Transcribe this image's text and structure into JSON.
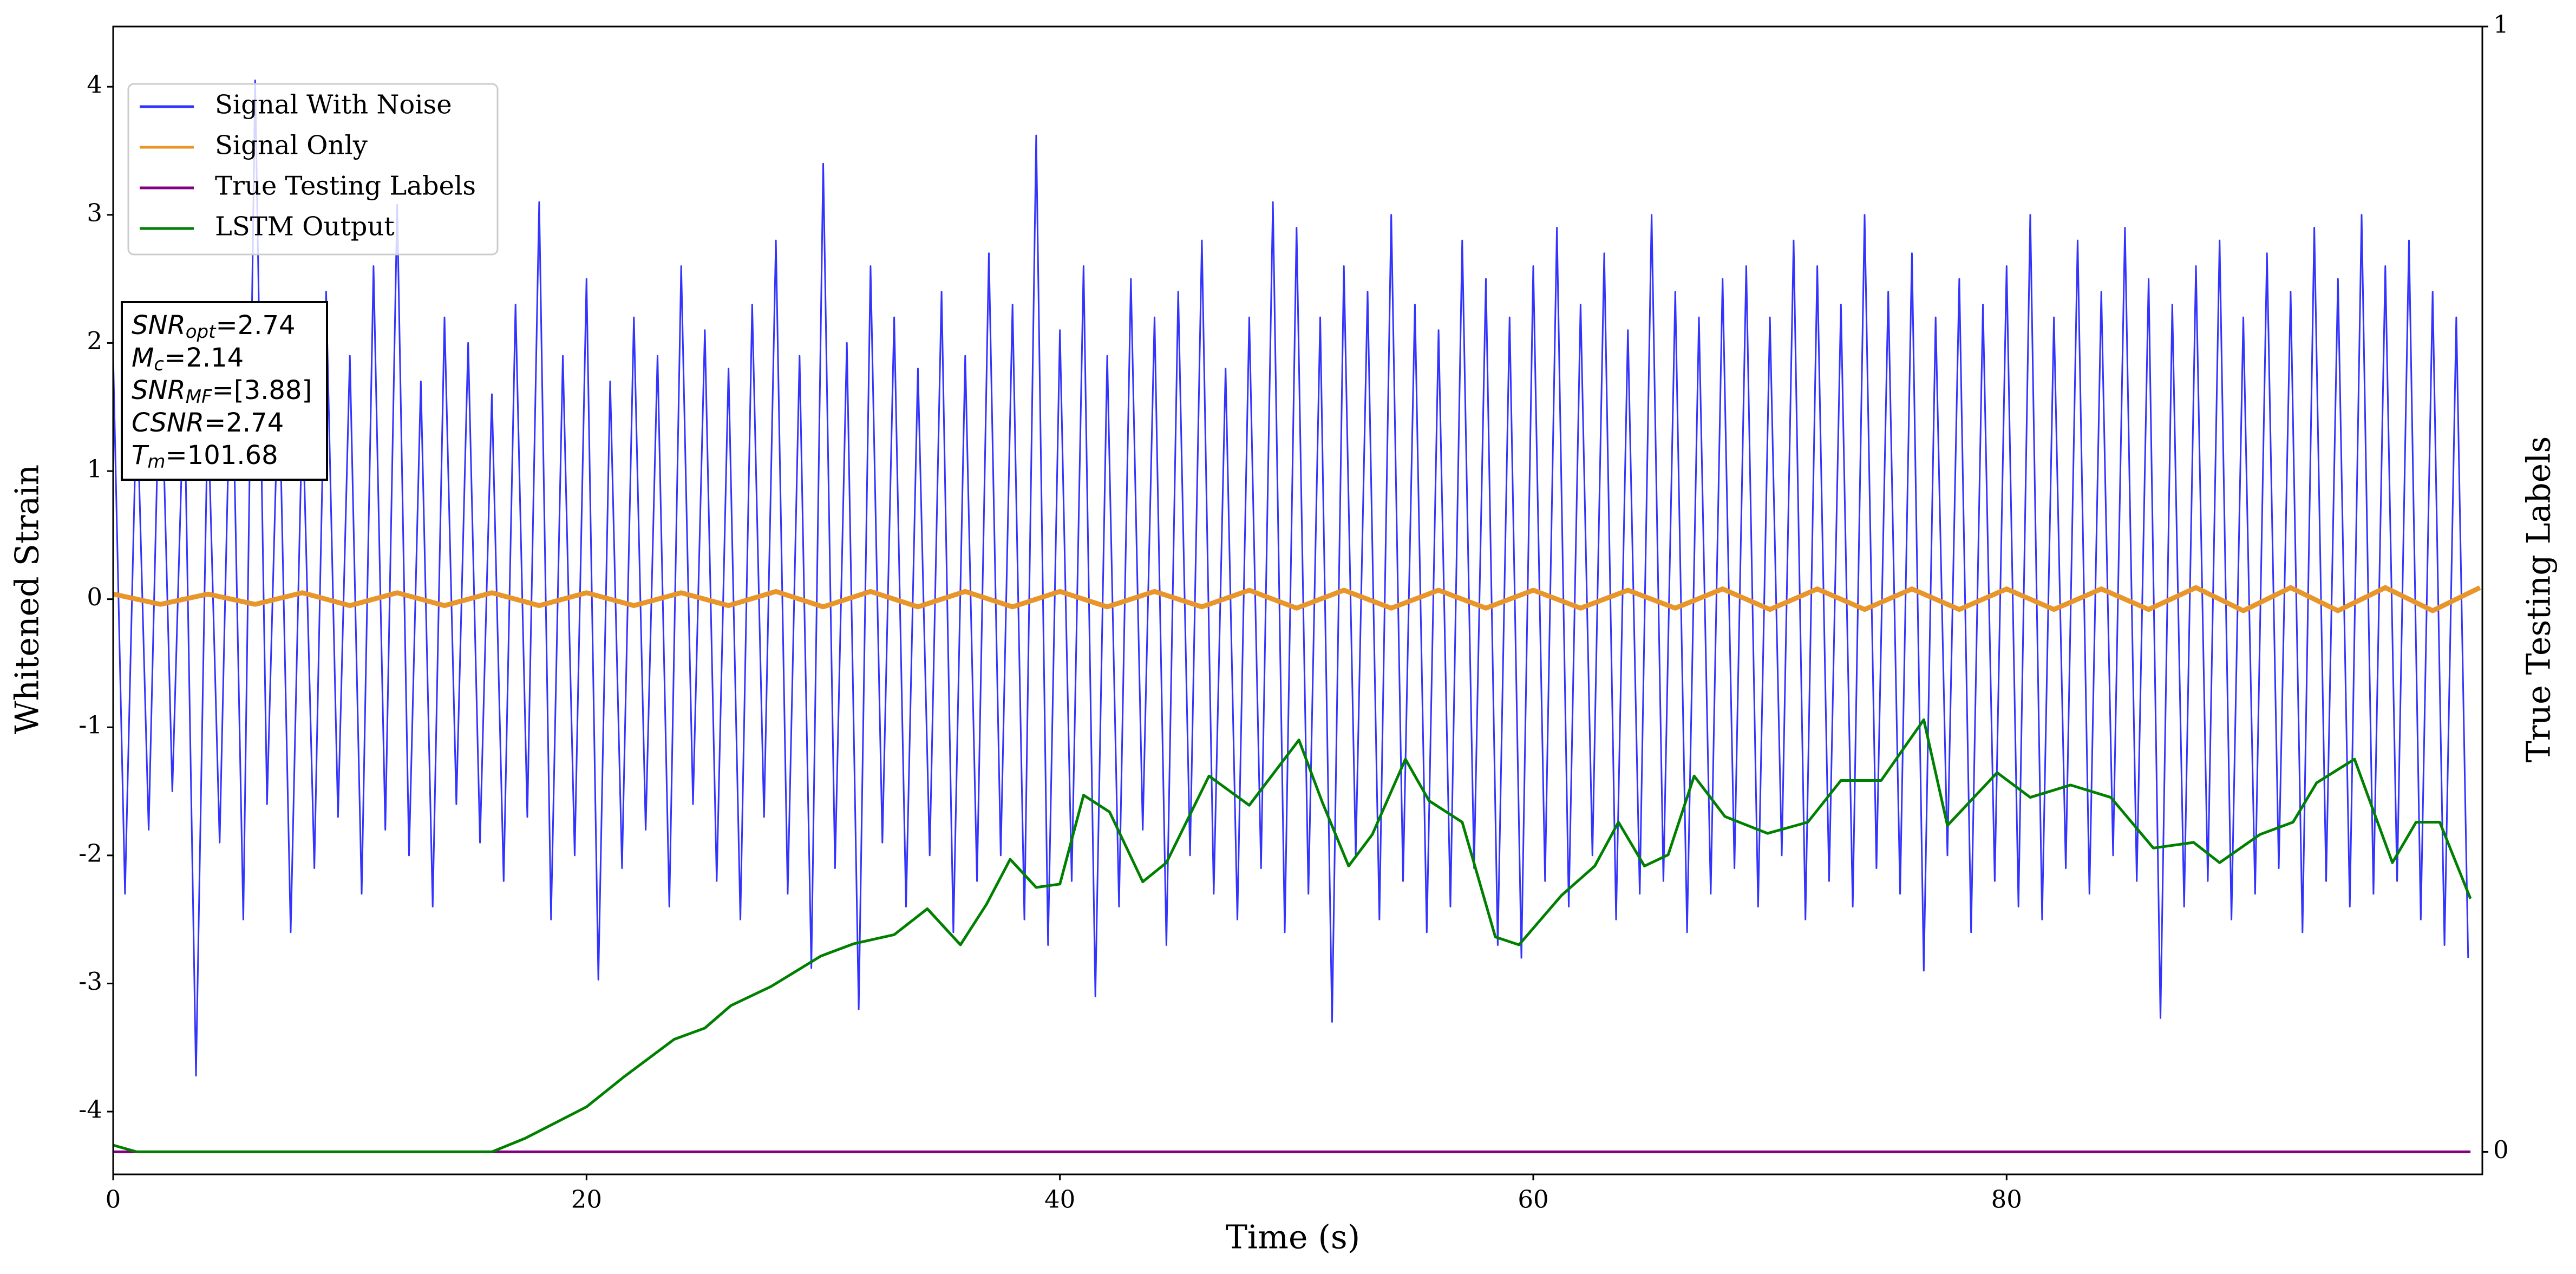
{
  "chart_data": {
    "type": "line",
    "xlabel": "Time (s)",
    "ylabel": "Whitened Strain",
    "y2label": "True Testing Labels",
    "xlim": [
      0,
      100.1
    ],
    "ylim": [
      -4.49,
      4.47
    ],
    "y2lim": [
      -0.02,
      1
    ],
    "xticks": [
      0,
      20,
      40,
      60,
      80
    ],
    "yticks": [
      -4,
      -3,
      -2,
      -1,
      0,
      1,
      2,
      3,
      4
    ],
    "y2ticks": [
      0,
      1
    ],
    "legend": "upper left",
    "annotation": [
      {
        "text": "SNR",
        "sub": "opt",
        "rest": "=2.74"
      },
      {
        "text": "M",
        "sub": "c",
        "rest": "=2.14"
      },
      {
        "text": "SNR",
        "sub": "MF",
        "rest": "=[3.88]"
      },
      {
        "text": "CSNR",
        "rest": "=2.74"
      },
      {
        "text": "T",
        "sub": "m",
        "rest": "=101.68"
      }
    ],
    "series": [
      {
        "name": "Signal With Noise",
        "color": "#3333ff",
        "x": [
          0,
          0.5,
          1,
          1.5,
          2,
          2.5,
          3,
          3.5,
          4,
          4.5,
          5,
          5.5,
          6,
          6.5,
          7,
          7.5,
          8,
          8.5,
          9,
          9.5,
          10,
          10.5,
          11,
          11.5,
          12,
          12.5,
          13,
          13.5,
          14,
          14.5,
          15,
          15.5,
          16,
          16.5,
          17,
          17.5,
          18,
          18.5,
          19,
          19.5,
          20,
          20.5,
          21,
          21.5,
          22,
          22.5,
          23,
          23.5,
          24,
          24.5,
          25,
          25.5,
          26,
          26.5,
          27,
          27.5,
          28,
          28.5,
          29,
          29.5,
          30,
          30.5,
          31,
          31.5,
          32,
          32.5,
          33,
          33.5,
          34,
          34.5,
          35,
          35.5,
          36,
          36.5,
          37,
          37.5,
          38,
          38.5,
          39,
          39.5,
          40,
          40.5,
          41,
          41.5,
          42,
          42.5,
          43,
          43.5,
          44,
          44.5,
          45,
          45.5,
          46,
          46.5,
          47,
          47.5,
          48,
          48.5,
          49,
          49.5,
          50,
          50.5,
          51,
          51.5,
          52,
          52.5,
          53,
          53.5,
          54,
          54.5,
          55,
          55.5,
          56,
          56.5,
          57,
          57.5,
          58,
          58.5,
          59,
          59.5,
          60,
          60.5,
          61,
          61.5,
          62,
          62.5,
          63,
          63.5,
          64,
          64.5,
          65,
          65.5,
          66,
          66.5,
          67,
          67.5,
          68,
          68.5,
          69,
          69.5,
          70,
          70.5,
          71,
          71.5,
          72,
          72.5,
          73,
          73.5,
          74,
          74.5,
          75,
          75.5,
          76,
          76.5,
          77,
          77.5,
          78,
          78.5,
          79,
          79.5,
          80,
          80.5,
          81,
          81.5,
          82,
          82.5,
          83,
          83.5,
          84,
          84.5,
          85,
          85.5,
          86,
          86.5,
          87,
          87.5,
          88,
          88.5,
          89,
          89.5,
          90,
          90.5,
          91,
          91.5,
          92,
          92.5,
          93,
          93.5,
          94,
          94.5,
          95,
          95.5,
          96,
          96.5,
          97,
          97.5,
          98,
          98.5,
          99,
          99.5
        ],
        "values": [
          1.9,
          -2.3,
          1.6,
          -1.8,
          2.1,
          -1.5,
          1.7,
          -3.72,
          1.5,
          -1.9,
          2.2,
          -2.5,
          4.05,
          -1.6,
          1.8,
          -2.6,
          1.5,
          -2.1,
          2.4,
          -1.7,
          1.9,
          -2.3,
          2.6,
          -1.8,
          3.08,
          -2.0,
          1.7,
          -2.4,
          2.2,
          -1.6,
          2.0,
          -1.9,
          1.6,
          -2.2,
          2.3,
          -1.7,
          3.1,
          -2.5,
          1.9,
          -2.0,
          2.5,
          -2.97,
          1.7,
          -2.1,
          2.2,
          -1.8,
          1.9,
          -2.4,
          2.6,
          -1.6,
          2.1,
          -2.2,
          1.8,
          -2.5,
          2.3,
          -1.7,
          2.8,
          -2.3,
          1.9,
          -2.88,
          3.4,
          -2.1,
          2.0,
          -3.2,
          2.6,
          -1.9,
          2.2,
          -2.4,
          1.8,
          -2.0,
          2.4,
          -2.6,
          1.9,
          -2.2,
          2.7,
          -2.0,
          2.3,
          -2.5,
          3.62,
          -2.7,
          2.1,
          -2.2,
          2.6,
          -3.1,
          1.9,
          -2.4,
          2.5,
          -1.8,
          2.2,
          -2.7,
          2.4,
          -2.0,
          2.8,
          -2.3,
          1.8,
          -2.5,
          2.2,
          -2.1,
          3.1,
          -2.6,
          2.9,
          -2.3,
          2.2,
          -3.3,
          2.6,
          -2.0,
          2.4,
          -2.5,
          3.0,
          -2.2,
          2.3,
          -2.6,
          2.1,
          -2.4,
          2.8,
          -2.1,
          2.5,
          -2.7,
          2.2,
          -2.8,
          2.6,
          -2.2,
          2.9,
          -2.4,
          2.3,
          -2.0,
          2.7,
          -2.5,
          2.1,
          -2.3,
          3.0,
          -2.2,
          2.4,
          -2.6,
          2.2,
          -2.3,
          2.5,
          -2.1,
          2.6,
          -2.4,
          2.2,
          -2.0,
          2.8,
          -2.5,
          2.6,
          -2.2,
          2.3,
          -2.4,
          3.0,
          -2.1,
          2.4,
          -2.3,
          2.7,
          -2.9,
          2.2,
          -2.0,
          2.5,
          -2.6,
          2.3,
          -2.2,
          2.6,
          -2.4,
          3.0,
          -2.5,
          2.2,
          -2.1,
          2.8,
          -2.3,
          2.4,
          -2.0,
          2.9,
          -2.2,
          2.5,
          -3.27,
          2.3,
          -2.4,
          2.6,
          -2.2,
          2.8,
          -2.5,
          2.2,
          -2.3,
          2.7,
          -2.1,
          2.4,
          -2.6,
          2.9,
          -2.2,
          2.5,
          -2.4,
          3.0,
          -2.3,
          2.6,
          -2.2,
          2.8,
          -2.5,
          2.4,
          -2.7,
          2.2,
          -2.8
        ]
      },
      {
        "name": "Signal Only",
        "color": "#e8952a",
        "x": [
          0,
          2,
          4,
          6,
          8,
          10,
          12,
          14,
          16,
          18,
          20,
          22,
          24,
          26,
          28,
          30,
          32,
          34,
          36,
          38,
          40,
          42,
          44,
          46,
          48,
          50,
          52,
          54,
          56,
          58,
          60,
          62,
          64,
          66,
          68,
          70,
          72,
          74,
          76,
          78,
          80,
          82,
          84,
          86,
          88,
          90,
          92,
          94,
          96,
          98,
          100
        ],
        "values": [
          0.04,
          -0.04,
          0.04,
          -0.04,
          0.05,
          -0.05,
          0.05,
          -0.05,
          0.05,
          -0.05,
          0.05,
          -0.05,
          0.05,
          -0.05,
          0.06,
          -0.06,
          0.06,
          -0.06,
          0.06,
          -0.06,
          0.06,
          -0.06,
          0.06,
          -0.06,
          0.07,
          -0.07,
          0.07,
          -0.07,
          0.07,
          -0.07,
          0.07,
          -0.07,
          0.07,
          -0.07,
          0.08,
          -0.08,
          0.08,
          -0.08,
          0.08,
          -0.08,
          0.08,
          -0.08,
          0.08,
          -0.08,
          0.09,
          -0.09,
          0.09,
          -0.09,
          0.09,
          -0.09,
          0.09
        ]
      },
      {
        "name": "True Testing Labels",
        "color": "purple",
        "axis": "y2",
        "x": [
          0,
          99.6
        ],
        "values": [
          0,
          0
        ]
      },
      {
        "name": "LSTM Output",
        "color": "green",
        "axis": "y2",
        "x": [
          0,
          1,
          16,
          17.4,
          20,
          21.6,
          23.7,
          25,
          26.1,
          27.8,
          29.9,
          31.3,
          33,
          34.4,
          35.8,
          36.9,
          37.9,
          39,
          40,
          41,
          42.1,
          43.5,
          44.5,
          46.3,
          48,
          50.1,
          51.1,
          52.2,
          53.2,
          54.6,
          55.6,
          57,
          58.4,
          59.4,
          61.2,
          62.6,
          63.6,
          64.7,
          65.7,
          66.8,
          68.1,
          69.9,
          71.6,
          73,
          74.7,
          76.5,
          77.5,
          79.6,
          81,
          82.7,
          84.4,
          86.2,
          87.9,
          89,
          90.7,
          92.1,
          93.1,
          94.7,
          96.3,
          97.3,
          98.3,
          99.6
        ],
        "values": [
          0.006,
          0,
          0,
          0.012,
          0.04,
          0.067,
          0.1,
          0.11,
          0.13,
          0.147,
          0.174,
          0.185,
          0.193,
          0.216,
          0.184,
          0.22,
          0.26,
          0.235,
          0.238,
          0.317,
          0.302,
          0.24,
          0.257,
          0.334,
          0.308,
          0.366,
          0.31,
          0.254,
          0.282,
          0.349,
          0.312,
          0.293,
          0.191,
          0.184,
          0.228,
          0.254,
          0.293,
          0.254,
          0.264,
          0.334,
          0.298,
          0.283,
          0.293,
          0.33,
          0.33,
          0.384,
          0.29,
          0.337,
          0.315,
          0.326,
          0.315,
          0.27,
          0.275,
          0.257,
          0.282,
          0.293,
          0.328,
          0.349,
          0.257,
          0.293,
          0.293,
          0.225
        ]
      }
    ]
  }
}
